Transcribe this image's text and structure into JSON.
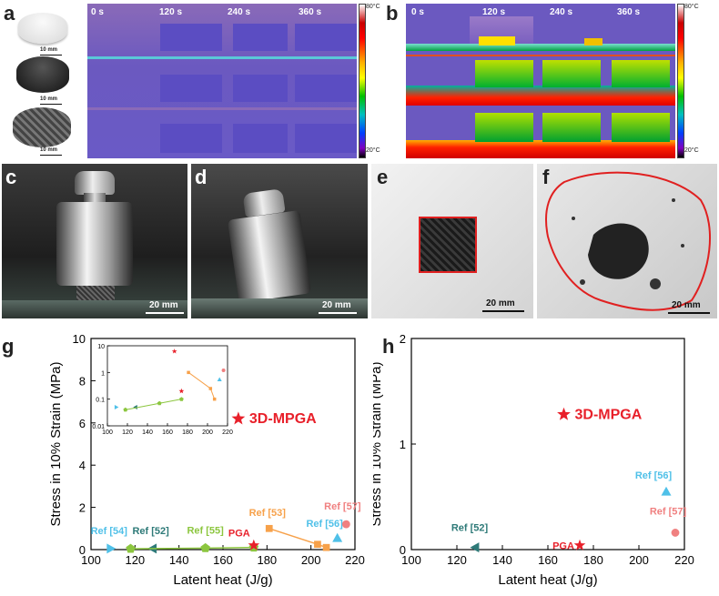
{
  "panels": {
    "a": "a",
    "b": "b",
    "c": "c",
    "d": "d",
    "e": "e",
    "f": "f",
    "g": "g",
    "h": "h"
  },
  "thermal": {
    "times": [
      "0 s",
      "120 s",
      "240 s",
      "360 s"
    ],
    "cbar_max": "80°C",
    "cbar_min": "20°C"
  },
  "sample_scale": "10 mm",
  "photo_scale": "20 mm",
  "chart_data": [
    {
      "type": "scatter",
      "id": "g",
      "xlabel": "Latent heat (J/g)",
      "ylabel": "Stress in 10% Strain (MPa)",
      "xlim": [
        100,
        220
      ],
      "ylim": [
        0,
        10
      ],
      "xticks": [
        "100",
        "120",
        "140",
        "160",
        "180",
        "200",
        "220"
      ],
      "yticks": [
        "0",
        "2",
        "4",
        "6",
        "8",
        "10"
      ],
      "series": [
        {
          "name": "3D-MPGA",
          "color": "#e8202a",
          "marker": "star",
          "points": [
            [
              167,
              6.2
            ]
          ]
        },
        {
          "name": "Ref [54]",
          "color": "#4fc0e8",
          "marker": "tri-right",
          "points": [
            [
              109,
              0.05
            ]
          ]
        },
        {
          "name": "Ref [52]",
          "color": "#2e7a78",
          "marker": "tri-left",
          "points": [
            [
              128,
              0.05
            ]
          ]
        },
        {
          "name": "Ref [55]",
          "color": "#8cc63f",
          "marker": "pentagon",
          "points": [
            [
              118,
              0.04
            ],
            [
              152,
              0.07
            ],
            [
              174,
              0.1
            ]
          ]
        },
        {
          "name": "PGA",
          "color": "#e8202a",
          "marker": "star",
          "points": [
            [
              174,
              0.2
            ]
          ]
        },
        {
          "name": "Ref [53]",
          "color": "#f7a14a",
          "marker": "square",
          "points": [
            [
              181,
              1.0
            ],
            [
              203,
              0.25
            ],
            [
              207,
              0.1
            ]
          ]
        },
        {
          "name": "Ref [56]",
          "color": "#4fc0e8",
          "marker": "triangle",
          "points": [
            [
              212,
              0.55
            ]
          ]
        },
        {
          "name": "Ref [57]",
          "color": "#f08080",
          "marker": "circle",
          "points": [
            [
              216,
              1.2
            ]
          ]
        }
      ],
      "inset": {
        "xlim": [
          100,
          220
        ],
        "ylim_log": [
          0.01,
          10
        ],
        "xticks": [
          "100",
          "120",
          "140",
          "160",
          "180",
          "200",
          "220"
        ],
        "yticks": [
          "0.01",
          "0.1",
          "1",
          "10"
        ]
      }
    },
    {
      "type": "scatter",
      "id": "h",
      "xlabel": "Latent heat (J/g)",
      "ylabel": "Stress in 10% Strain (MPa)",
      "xlim": [
        100,
        220
      ],
      "ylim": [
        0,
        2
      ],
      "xticks": [
        "100",
        "120",
        "140",
        "160",
        "180",
        "200",
        "220"
      ],
      "yticks": [
        "0",
        "1",
        "2"
      ],
      "series": [
        {
          "name": "3D-MPGA",
          "color": "#e8202a",
          "marker": "star",
          "points": [
            [
              167,
              1.28
            ]
          ]
        },
        {
          "name": "Ref [52]",
          "color": "#2e7a78",
          "marker": "tri-left",
          "points": [
            [
              128,
              0.02
            ]
          ]
        },
        {
          "name": "PGA",
          "color": "#e8202a",
          "marker": "star",
          "points": [
            [
              174,
              0.04
            ]
          ]
        },
        {
          "name": "Ref [56]",
          "color": "#4fc0e8",
          "marker": "triangle",
          "points": [
            [
              212,
              0.55
            ]
          ]
        },
        {
          "name": "Ref [57]",
          "color": "#f08080",
          "marker": "circle",
          "points": [
            [
              216,
              0.16
            ]
          ]
        }
      ]
    }
  ]
}
